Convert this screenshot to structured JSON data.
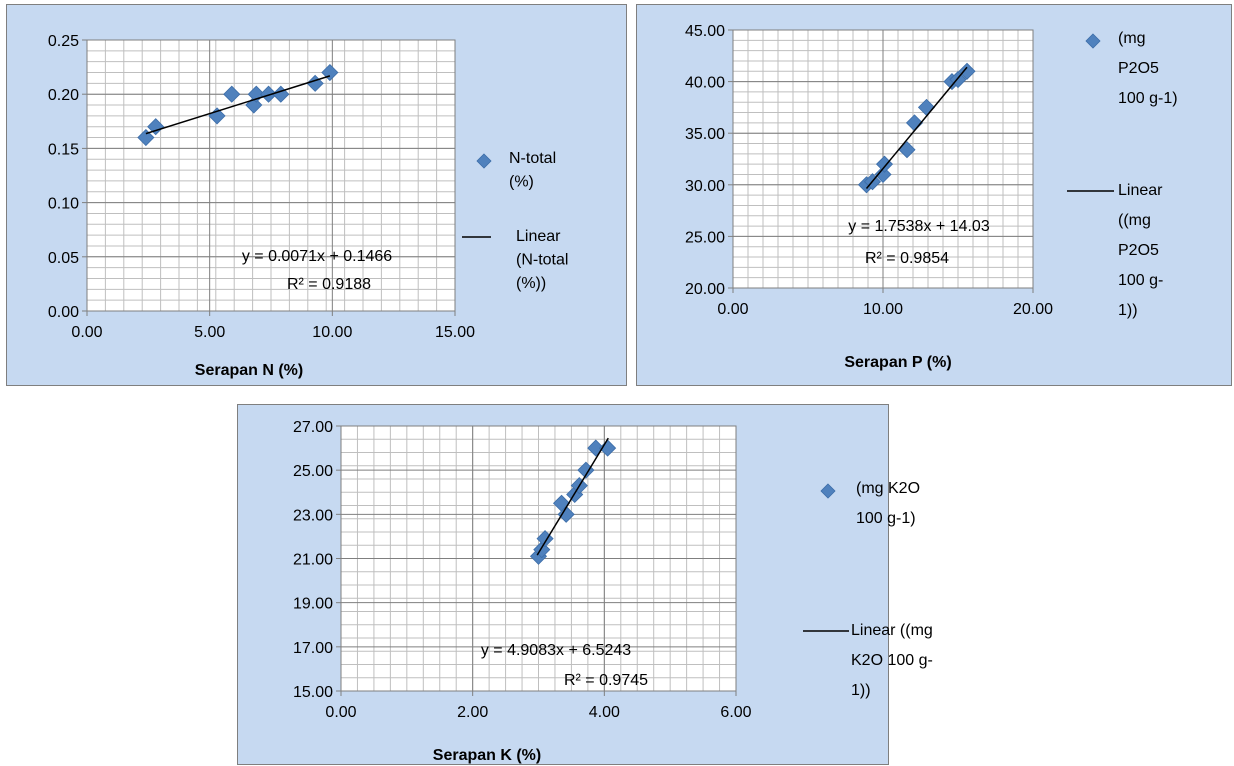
{
  "chart_data": [
    {
      "type": "scatter",
      "title": "",
      "xlabel": "Serapan N (%)",
      "ylabel": "",
      "xlim": [
        0,
        15
      ],
      "ylim": [
        0,
        0.25
      ],
      "x_ticks": [
        "0.00",
        "5.00",
        "10.00",
        "15.00"
      ],
      "y_ticks": [
        "0.00",
        "0.05",
        "0.10",
        "0.15",
        "0.20",
        "0.25"
      ],
      "grid": true,
      "legend": "right",
      "series": [
        {
          "name": "N-total (%)",
          "marker_color": "#4f81bd",
          "points": [
            [
              2.4,
              0.16
            ],
            [
              2.8,
              0.17
            ],
            [
              5.3,
              0.18
            ],
            [
              5.9,
              0.2
            ],
            [
              6.8,
              0.19
            ],
            [
              6.9,
              0.2
            ],
            [
              7.4,
              0.2
            ],
            [
              7.9,
              0.2
            ],
            [
              9.3,
              0.21
            ],
            [
              9.9,
              0.22
            ]
          ]
        }
      ],
      "trendline": {
        "name": "Linear (N-total (%))",
        "slope": 0.0071,
        "intercept": 0.1466,
        "x_range": [
          2.4,
          9.9
        ],
        "equation": "y = 0.0071x + 0.1466",
        "r2": "R² = 0.9188"
      },
      "legend_lines": {
        "series": [
          "N-total",
          "(%)"
        ],
        "trend": [
          "Linear",
          "(N-total",
          "(%))"
        ]
      }
    },
    {
      "type": "scatter",
      "title": "",
      "xlabel": "Serapan P (%)",
      "ylabel": "",
      "xlim": [
        0,
        20
      ],
      "ylim": [
        20,
        45
      ],
      "x_ticks": [
        "0.00",
        "10.00",
        "20.00"
      ],
      "y_ticks": [
        "20.00",
        "25.00",
        "30.00",
        "35.00",
        "40.00",
        "45.00"
      ],
      "grid": true,
      "legend": "right",
      "series": [
        {
          "name": "(mg P2O5 100 g-1)",
          "marker_color": "#4f81bd",
          "points": [
            [
              8.9,
              30.0
            ],
            [
              9.3,
              30.3
            ],
            [
              10.0,
              31.0
            ],
            [
              10.1,
              32.0
            ],
            [
              11.6,
              33.4
            ],
            [
              12.1,
              36.0
            ],
            [
              12.9,
              37.5
            ],
            [
              14.6,
              40.0
            ],
            [
              15.0,
              40.2
            ],
            [
              15.6,
              41.0
            ]
          ]
        }
      ],
      "trendline": {
        "name": "Linear ((mg P2O5 100 g-1))",
        "slope": 1.7538,
        "intercept": 14.03,
        "x_range": [
          8.9,
          15.6
        ],
        "equation": "y = 1.7538x + 14.03",
        "r2": "R² = 0.9854"
      },
      "legend_lines": {
        "series": [
          "(mg",
          "P2O5",
          "100 g-1)"
        ],
        "trend": [
          "Linear",
          "((mg",
          "P2O5",
          "100 g-",
          "1))"
        ]
      }
    },
    {
      "type": "scatter",
      "title": "",
      "xlabel": "Serapan K (%)",
      "ylabel": "",
      "xlim": [
        0,
        6
      ],
      "ylim": [
        15,
        27
      ],
      "x_ticks": [
        "0.00",
        "2.00",
        "4.00",
        "6.00"
      ],
      "y_ticks": [
        "15.00",
        "17.00",
        "19.00",
        "21.00",
        "23.00",
        "25.00",
        "27.00"
      ],
      "grid": true,
      "legend": "right",
      "series": [
        {
          "name": "(mg K2O 100 g-1)",
          "marker_color": "#4f81bd",
          "points": [
            [
              3.0,
              21.1
            ],
            [
              3.05,
              21.4
            ],
            [
              3.1,
              21.9
            ],
            [
              3.35,
              23.5
            ],
            [
              3.42,
              23.0
            ],
            [
              3.55,
              23.9
            ],
            [
              3.62,
              24.3
            ],
            [
              3.72,
              25.0
            ],
            [
              3.87,
              26.0
            ],
            [
              4.05,
              26.0
            ]
          ]
        }
      ],
      "trendline": {
        "name": "Linear ((mg K2O 100 g-1))",
        "slope": 4.9083,
        "intercept": 6.5243,
        "x_range": [
          2.98,
          4.06
        ],
        "equation": "y = 4.9083x + 6.5243",
        "r2": "R² = 0.9745"
      },
      "legend_lines": {
        "series": [
          "(mg K2O",
          "100 g-1)"
        ],
        "trend": [
          "Linear ((mg",
          "K2O 100 g-",
          "1))"
        ]
      }
    }
  ]
}
